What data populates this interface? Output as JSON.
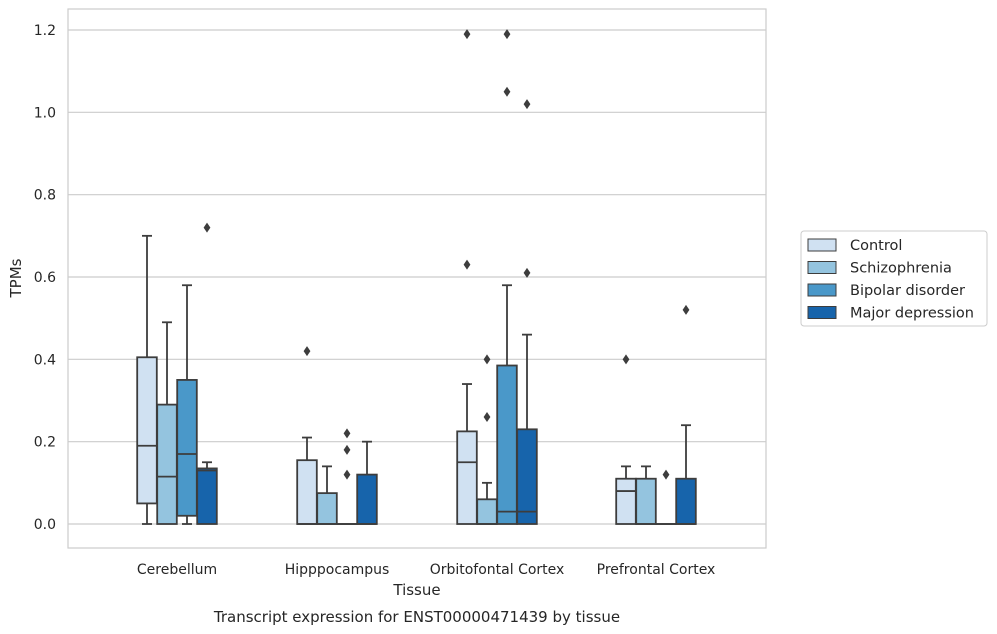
{
  "chart_data": {
    "type": "box",
    "title": "",
    "caption": "Transcript expression for ENST00000471439 by tissue",
    "xlabel": "Tissue",
    "ylabel": "TPMs",
    "ylim": [
      -0.06,
      1.25
    ],
    "yticks": [
      "0.0",
      "0.2",
      "0.4",
      "0.6",
      "0.8",
      "1.0",
      "1.2"
    ],
    "grid": "horizontal",
    "legend_position": "right",
    "categories": [
      "Cerebellum",
      "Hipppocampus",
      "Orbitofontal Cortex",
      "Prefrontal Cortex"
    ],
    "series": [
      {
        "name": "Control",
        "color": "#d0e1f2",
        "boxes": [
          {
            "q1": 0.05,
            "median": 0.19,
            "q3": 0.405,
            "whislo": 0.0,
            "whishi": 0.7,
            "fliers": []
          },
          {
            "q1": 0.0,
            "median": 0.0,
            "q3": 0.155,
            "whislo": 0.0,
            "whishi": 0.21,
            "fliers": [
              0.42
            ]
          },
          {
            "q1": 0.0,
            "median": 0.15,
            "q3": 0.225,
            "whislo": 0.0,
            "whishi": 0.34,
            "fliers": [
              0.63,
              1.19
            ]
          },
          {
            "q1": 0.0,
            "median": 0.08,
            "q3": 0.11,
            "whislo": 0.0,
            "whishi": 0.14,
            "fliers": [
              0.4
            ]
          }
        ]
      },
      {
        "name": "Schizophrenia",
        "color": "#94c4df",
        "boxes": [
          {
            "q1": 0.0,
            "median": 0.115,
            "q3": 0.29,
            "whislo": 0.0,
            "whishi": 0.49,
            "fliers": []
          },
          {
            "q1": 0.0,
            "median": 0.0,
            "q3": 0.075,
            "whislo": 0.0,
            "whishi": 0.14,
            "fliers": []
          },
          {
            "q1": 0.0,
            "median": 0.0,
            "q3": 0.06,
            "whislo": 0.0,
            "whishi": 0.1,
            "fliers": [
              0.26,
              0.4
            ]
          },
          {
            "q1": 0.0,
            "median": 0.0,
            "q3": 0.11,
            "whislo": 0.0,
            "whishi": 0.14,
            "fliers": []
          }
        ]
      },
      {
        "name": "Bipolar disorder",
        "color": "#4a98c9",
        "boxes": [
          {
            "q1": 0.02,
            "median": 0.17,
            "q3": 0.35,
            "whislo": 0.0,
            "whishi": 0.58,
            "fliers": []
          },
          {
            "q1": 0.0,
            "median": 0.0,
            "q3": 0.0,
            "whislo": 0.0,
            "whishi": 0.0,
            "fliers": [
              0.12,
              0.18,
              0.22
            ]
          },
          {
            "q1": 0.0,
            "median": 0.03,
            "q3": 0.385,
            "whislo": 0.0,
            "whishi": 0.58,
            "fliers": [
              1.05,
              1.19
            ]
          },
          {
            "q1": 0.0,
            "median": 0.0,
            "q3": 0.0,
            "whislo": 0.0,
            "whishi": 0.0,
            "fliers": [
              0.12
            ]
          }
        ]
      },
      {
        "name": "Major depression",
        "color": "#1764ab",
        "boxes": [
          {
            "q1": 0.0,
            "median": 0.13,
            "q3": 0.135,
            "whislo": 0.0,
            "whishi": 0.15,
            "fliers": [
              0.72
            ]
          },
          {
            "q1": 0.0,
            "median": 0.0,
            "q3": 0.12,
            "whislo": 0.0,
            "whishi": 0.2,
            "fliers": []
          },
          {
            "q1": 0.0,
            "median": 0.03,
            "q3": 0.23,
            "whislo": 0.0,
            "whishi": 0.46,
            "fliers": [
              0.61,
              1.02
            ]
          },
          {
            "q1": 0.0,
            "median": 0.0,
            "q3": 0.11,
            "whislo": 0.0,
            "whishi": 0.24,
            "fliers": [
              0.52
            ]
          }
        ]
      }
    ]
  }
}
